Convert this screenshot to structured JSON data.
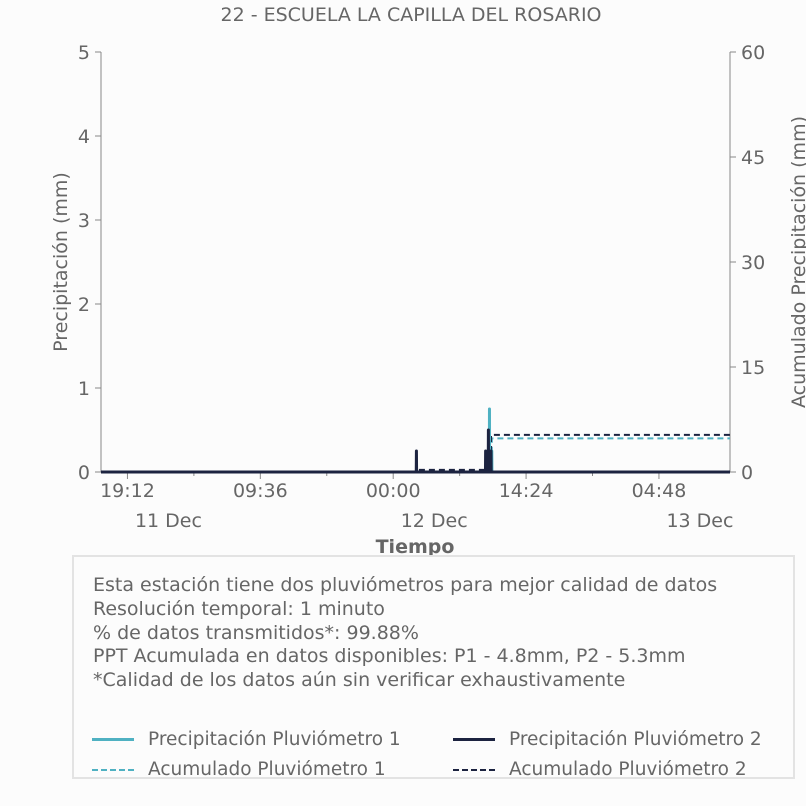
{
  "chart_data": {
    "type": "line",
    "title": "22 - ESCUELA LA CAPILLA DEL ROSARIO",
    "xlabel": "Tiempo",
    "ylabel": "Precipitación (mm)",
    "y2label": "Acumulado Precipitación (mm)",
    "x_ticks": [
      {
        "time": "2023-12-10T19:12",
        "label": "19:12",
        "date": "11 Dec"
      },
      {
        "time": "2023-12-11T09:36",
        "label": "09:36",
        "date": ""
      },
      {
        "time": "2023-12-12T00:00",
        "label": "00:00",
        "date": "12 Dec"
      },
      {
        "time": "2023-12-12T14:24",
        "label": "14:24",
        "date": ""
      },
      {
        "time": "2023-12-13T04:48",
        "label": "04:48",
        "date": "13 Dec"
      }
    ],
    "xlim": [
      "2023-12-10T16:20",
      "2023-12-13T12:30"
    ],
    "ylim": [
      0,
      5
    ],
    "yticks": [
      0,
      1,
      2,
      3,
      4,
      5
    ],
    "y2lim": [
      0,
      60
    ],
    "y2ticks": [
      0,
      15,
      30,
      45,
      60
    ],
    "series": [
      {
        "name": "Precipitación Pluviómetro 1",
        "axis": "left",
        "style": "solid",
        "color": "#4fb1c2",
        "points": [
          [
            "2023-12-10T16:20",
            0
          ],
          [
            "2023-12-12T10:15",
            0
          ],
          [
            "2023-12-12T10:16",
            0.25
          ],
          [
            "2023-12-12T10:17",
            0
          ],
          [
            "2023-12-12T10:25",
            0
          ],
          [
            "2023-12-12T10:26",
            0.75
          ],
          [
            "2023-12-12T10:27",
            0
          ],
          [
            "2023-12-12T10:40",
            0
          ],
          [
            "2023-12-12T10:41",
            0.25
          ],
          [
            "2023-12-12T10:42",
            0
          ],
          [
            "2023-12-13T12:30",
            0
          ]
        ]
      },
      {
        "name": "Precipitación Pluviómetro 2",
        "axis": "left",
        "style": "solid",
        "color": "#1c2340",
        "points": [
          [
            "2023-12-10T16:20",
            0
          ],
          [
            "2023-12-12T02:30",
            0
          ],
          [
            "2023-12-12T02:31",
            0.25
          ],
          [
            "2023-12-12T02:32",
            0
          ],
          [
            "2023-12-12T10:00",
            0
          ],
          [
            "2023-12-12T10:01",
            0.25
          ],
          [
            "2023-12-12T10:02",
            0
          ],
          [
            "2023-12-12T10:18",
            0
          ],
          [
            "2023-12-12T10:19",
            0.5
          ],
          [
            "2023-12-12T10:20",
            0
          ],
          [
            "2023-12-12T10:35",
            0
          ],
          [
            "2023-12-12T10:36",
            0.25
          ],
          [
            "2023-12-12T10:37",
            0
          ],
          [
            "2023-12-13T12:30",
            0
          ]
        ]
      },
      {
        "name": "Acumulado Pluviómetro 1",
        "axis": "right",
        "style": "dashed",
        "color": "#4fb1c2",
        "points": [
          [
            "2023-12-10T16:20",
            0
          ],
          [
            "2023-12-12T10:15",
            0
          ],
          [
            "2023-12-12T10:16",
            0.5
          ],
          [
            "2023-12-12T10:26",
            3.0
          ],
          [
            "2023-12-12T10:41",
            4.8
          ],
          [
            "2023-12-13T12:30",
            4.8
          ]
        ]
      },
      {
        "name": "Acumulado Pluviómetro 2",
        "axis": "right",
        "style": "dashed",
        "color": "#1c2340",
        "points": [
          [
            "2023-12-10T16:20",
            0
          ],
          [
            "2023-12-12T02:30",
            0
          ],
          [
            "2023-12-12T02:31",
            0.3
          ],
          [
            "2023-12-12T10:01",
            0.5
          ],
          [
            "2023-12-12T10:19",
            2.5
          ],
          [
            "2023-12-12T10:36",
            5.3
          ],
          [
            "2023-12-13T12:30",
            5.3
          ]
        ]
      }
    ]
  },
  "info": {
    "lines": [
      "Esta estación tiene dos pluviómetros para mejor calidad de datos",
      "Resolución temporal: 1 minuto",
      "% de datos transmitidos*: 99.88%",
      "PPT Acumulada en datos disponibles: P1 - 4.8mm, P2 - 5.3mm",
      "*Calidad de los datos aún sin verificar exhaustivamente"
    ]
  }
}
